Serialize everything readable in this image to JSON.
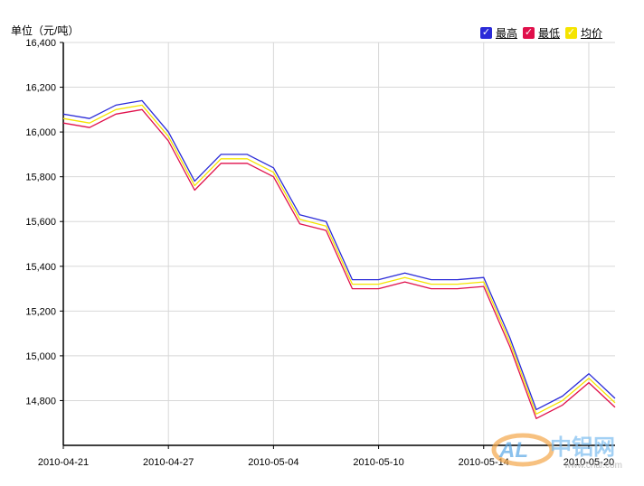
{
  "unit_label": "单位（元/吨）",
  "legend": [
    {
      "label": "最高",
      "color": "#2b2bd8"
    },
    {
      "label": "最低",
      "color": "#e0104b"
    },
    {
      "label": "均价",
      "color": "#f5e400"
    }
  ],
  "watermark": {
    "logo_text": "AL",
    "brand": "中铝网",
    "url": "www.cnal.com"
  },
  "chart_data": {
    "type": "line",
    "ylabel": "单位（元/吨）",
    "ylim": [
      14600,
      16400
    ],
    "yticks": [
      14800,
      15000,
      15200,
      15400,
      15600,
      15800,
      16000,
      16200,
      16400
    ],
    "ytick_labels": [
      "14,800",
      "15,000",
      "15,200",
      "15,400",
      "15,600",
      "15,800",
      "16,000",
      "16,200",
      "16,400"
    ],
    "x": [
      "2010-04-21",
      "2010-04-22",
      "2010-04-23",
      "2010-04-26",
      "2010-04-27",
      "2010-04-28",
      "2010-04-29",
      "2010-04-30",
      "2010-05-04",
      "2010-05-05",
      "2010-05-06",
      "2010-05-07",
      "2010-05-10",
      "2010-05-11",
      "2010-05-12",
      "2010-05-13",
      "2010-05-14",
      "2010-05-17",
      "2010-05-18",
      "2010-05-19",
      "2010-05-20",
      "2010-05-21"
    ],
    "xtick_labels": [
      "2010-04-21",
      "2010-04-27",
      "2010-05-04",
      "2010-05-10",
      "2010-05-14",
      "2010-05-20"
    ],
    "grid": true,
    "legend_position": "top-right",
    "series": [
      {
        "name": "最高",
        "color": "#2b2bd8",
        "values": [
          16080,
          16060,
          16120,
          16140,
          16000,
          15780,
          15900,
          15900,
          15840,
          15630,
          15600,
          15340,
          15340,
          15370,
          15340,
          15340,
          15350,
          15080,
          14760,
          14820,
          14920,
          14810
        ]
      },
      {
        "name": "最低",
        "color": "#e0104b",
        "values": [
          16040,
          16020,
          16080,
          16100,
          15960,
          15740,
          15860,
          15860,
          15800,
          15590,
          15560,
          15300,
          15300,
          15330,
          15300,
          15300,
          15310,
          15040,
          14720,
          14780,
          14880,
          14770
        ]
      },
      {
        "name": "均价",
        "color": "#f5e400",
        "values": [
          16060,
          16040,
          16100,
          16120,
          15980,
          15760,
          15880,
          15880,
          15820,
          15610,
          15580,
          15320,
          15320,
          15350,
          15320,
          15320,
          15330,
          15060,
          14740,
          14800,
          14900,
          14790
        ]
      }
    ]
  }
}
